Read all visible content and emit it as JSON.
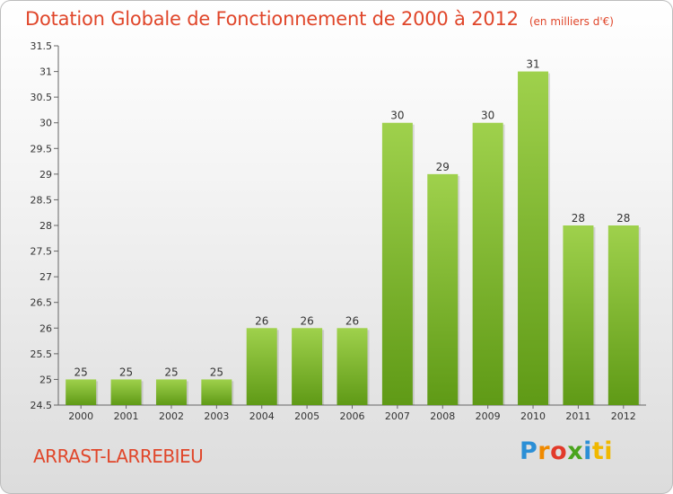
{
  "header": {
    "title": "Dotation Globale de Fonctionnement de 2000 à 2012",
    "subtitle": "(en milliers d'€)"
  },
  "place_name": "ARRAST-LARREBIEU",
  "logo": {
    "text": "Proxiti",
    "letters": [
      "P",
      "r",
      "o",
      "x",
      "i",
      "ti"
    ]
  },
  "colors": {
    "title": "#e0462a",
    "bar_light": "#9fd14c",
    "bar_dark": "#5f9a16"
  },
  "chart_data": {
    "type": "bar",
    "title": "Dotation Globale de Fonctionnement de 2000 à 2012",
    "subtitle": "(en milliers d'€)",
    "categories": [
      "2000",
      "2001",
      "2002",
      "2003",
      "2004",
      "2005",
      "2006",
      "2007",
      "2008",
      "2009",
      "2010",
      "2011",
      "2012"
    ],
    "values": [
      25,
      25,
      25,
      25,
      26,
      26,
      26,
      30,
      29,
      30,
      31,
      28,
      28
    ],
    "ylim": [
      24.5,
      31.5
    ],
    "yticks": [
      "24.5",
      "25",
      "25.5",
      "26",
      "26.5",
      "27",
      "27.5",
      "28",
      "28.5",
      "29",
      "29.5",
      "30",
      "30.5",
      "31",
      "31.5"
    ],
    "grid": false,
    "legend": "none"
  }
}
